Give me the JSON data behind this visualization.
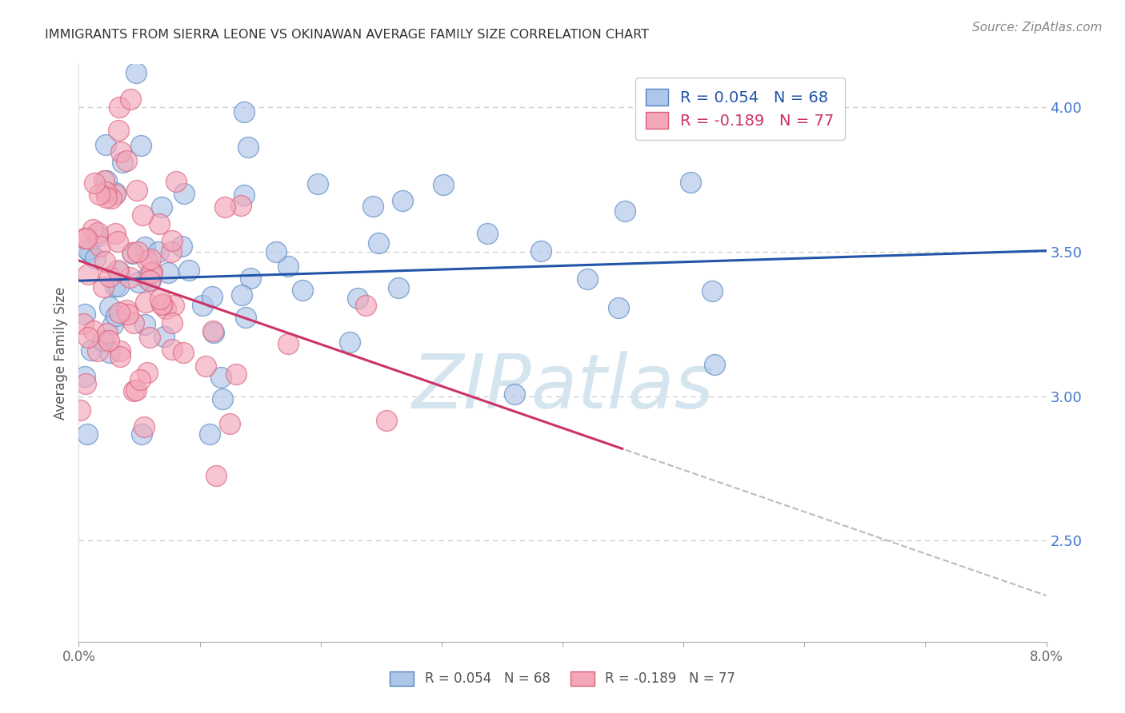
{
  "title": "IMMIGRANTS FROM SIERRA LEONE VS OKINAWAN AVERAGE FAMILY SIZE CORRELATION CHART",
  "source": "Source: ZipAtlas.com",
  "ylabel": "Average Family Size",
  "right_yticks": [
    4.0,
    3.5,
    3.0,
    2.5
  ],
  "legend_blue": "R = 0.054   N = 68",
  "legend_pink": "R = -0.189   N = 77",
  "blue_fill": "#aec6e8",
  "blue_edge": "#5585c0",
  "pink_fill": "#f4a7b9",
  "pink_edge": "#d9607a",
  "blue_line_color": "#2255aa",
  "pink_line_color": "#cc3366",
  "dash_color": "#bbbbbb",
  "watermark_color": "#d5e5f0",
  "x_min": 0.0,
  "x_max": 8.0,
  "y_min": 2.15,
  "y_max": 4.15,
  "blue_intercept": 3.4,
  "blue_slope": 0.013,
  "pink_intercept": 3.47,
  "pink_slope": -0.145,
  "pink_solid_end": 4.5,
  "seed_blue": 42,
  "seed_pink": 123
}
